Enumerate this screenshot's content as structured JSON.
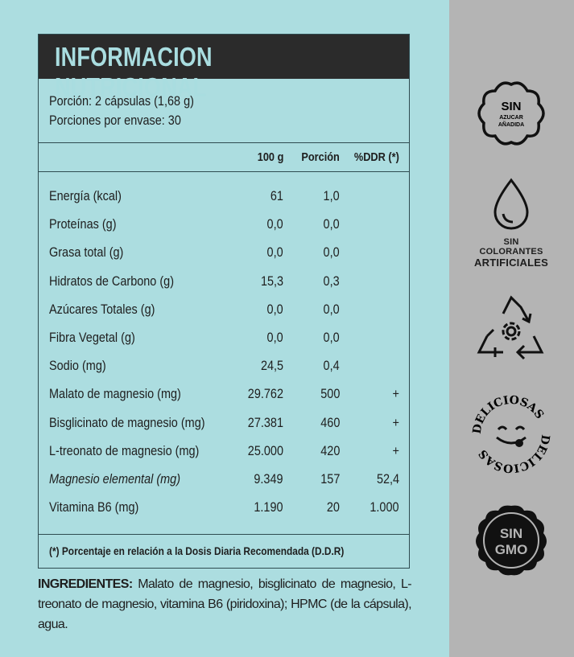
{
  "title": "INFORMACION NUTRICIONAL",
  "serving": {
    "line1": "Porción: 2 cápsulas (1,68 g)",
    "line2": "Porciones por envase: 30"
  },
  "columns": {
    "per100": "100 g",
    "portion": "Porción",
    "ddr": "%DDR (*)"
  },
  "rows": [
    {
      "name": "Energía  (kcal)",
      "per100": "61",
      "portion": "1,0",
      "ddr": ""
    },
    {
      "name": "Proteínas (g)",
      "per100": "0,0",
      "portion": "0,0",
      "ddr": ""
    },
    {
      "name": "Grasa total (g)",
      "per100": "0,0",
      "portion": "0,0",
      "ddr": ""
    },
    {
      "name": "Hidratos de Carbono (g)",
      "per100": "15,3",
      "portion": "0,3",
      "ddr": ""
    },
    {
      "name": "Azúcares Totales (g)",
      "per100": "0,0",
      "portion": "0,0",
      "ddr": ""
    },
    {
      "name": "Fibra Vegetal (g)",
      "per100": "0,0",
      "portion": "0,0",
      "ddr": ""
    },
    {
      "name": "Sodio (mg)",
      "per100": "24,5",
      "portion": "0,4",
      "ddr": ""
    },
    {
      "name": "Malato de magnesio (mg)",
      "per100": "29.762",
      "portion": "500",
      "ddr": "+"
    },
    {
      "name": "Bisglicinato de magnesio (mg)",
      "per100": "27.381",
      "portion": "460",
      "ddr": "+"
    },
    {
      "name": "L-treonato de magnesio (mg)",
      "per100": "25.000",
      "portion": "420",
      "ddr": "+"
    },
    {
      "name": "Magnesio elemental (mg)",
      "per100": "9.349",
      "portion": "157",
      "ddr": "52,4",
      "italic": true
    },
    {
      "name": "Vitamina B6 (mg)",
      "per100": "1.190",
      "portion": "20",
      "ddr": "1.000"
    }
  ],
  "footnote": "(*) Porcentaje en relación a la Dosis Diaria Recomendada (D.D.R)",
  "ingredients": {
    "label": "INGREDIENTES:",
    "text": " Malato de magnesio, bisglicinato de magnesio, L-treonato de magnesio, vitamina B6 (piridoxina); HPMC (de la cápsula), agua."
  },
  "badges": {
    "sugar": {
      "l1": "SIN",
      "l2": "AZUCAR",
      "l3": "AÑADIDA",
      "icon": "cloud-badge-icon"
    },
    "colorants": {
      "l1": "SIN COLORANTES",
      "l2": "ARTIFICIALES",
      "icon": "drop-icon"
    },
    "recycle": {
      "icon": "recycle-flower-icon"
    },
    "delicious": {
      "text": "DELICIOSAS",
      "icon": "smiley-tongue-icon"
    },
    "gmo": {
      "l1": "SIN",
      "l2": "GMO",
      "icon": "seal-badge-icon"
    }
  },
  "colors": {
    "background": "#acdde0",
    "panel": "#b4b4b4",
    "header": "#2b2b2b",
    "header_text": "#a9dde0"
  }
}
